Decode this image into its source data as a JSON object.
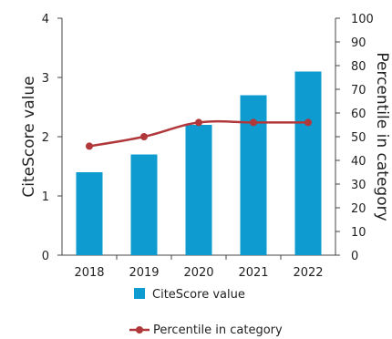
{
  "chart_data": {
    "type": "bar",
    "categories": [
      "2018",
      "2019",
      "2020",
      "2021",
      "2022"
    ],
    "series": [
      {
        "name": "CiteScore value",
        "type": "bar",
        "axis": "left",
        "values": [
          1.4,
          1.7,
          2.2,
          2.7,
          3.1
        ],
        "color": "#0e9bd0"
      },
      {
        "name": "Percentile in category",
        "type": "line",
        "axis": "right",
        "values": [
          46,
          50,
          56,
          56,
          56
        ],
        "color": "#b0383a"
      }
    ],
    "ylabel": "CiteScore value",
    "y2label": "Percentile in category",
    "ylim": [
      0,
      4
    ],
    "y2lim": [
      0,
      100
    ],
    "yticks": [
      "0",
      "1",
      "2",
      "3",
      "4"
    ],
    "y2ticks": [
      "0",
      "10",
      "20",
      "30",
      "40",
      "50",
      "60",
      "70",
      "80",
      "90",
      "100"
    ],
    "grid": false,
    "legend_position": "bottom"
  }
}
